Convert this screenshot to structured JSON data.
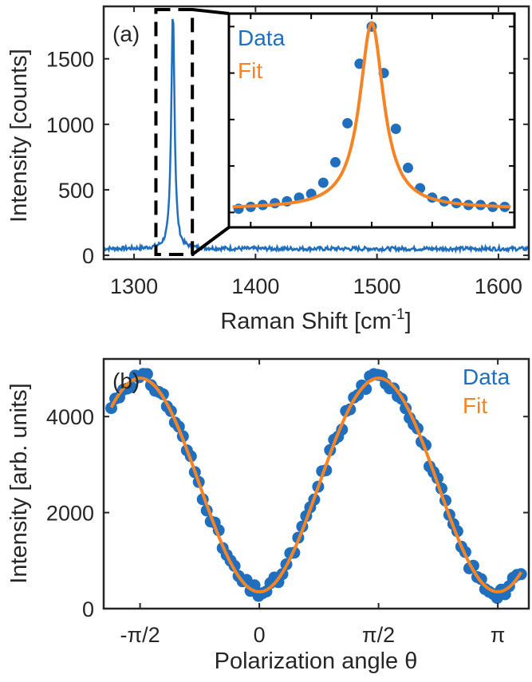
{
  "colors": {
    "data": "#1f6fbe",
    "fit": "#f58426",
    "axis": "#262626",
    "frame": "#000000"
  },
  "chart_data": [
    {
      "type": "line",
      "panel_label": "(a)",
      "xlabel": "Raman Shift [cm",
      "xlabel_sup": "-1",
      "xlabel_close": "]",
      "ylabel": "Intensity [counts]",
      "xlim": [
        1275,
        1625
      ],
      "ylim": [
        -30,
        1900
      ],
      "xticks": [
        1300,
        1400,
        1500,
        1600
      ],
      "yticks": [
        0,
        500,
        1000,
        1500
      ],
      "series": [
        {
          "kind": "raman-spectrum",
          "baseline": 50,
          "noise": 15,
          "peak_center": 1332,
          "peak_height": 1830,
          "peak_hwhm": 1.6
        }
      ],
      "zoom_box_x": [
        1318,
        1348
      ],
      "inset": {
        "series": [
          {
            "name": "Data",
            "kind": "points"
          },
          {
            "name": "Fit",
            "kind": "line"
          }
        ],
        "x": [
          -11.0,
          -10.0,
          -9.0,
          -8.0,
          -7.0,
          -6.0,
          -5.0,
          -4.0,
          -3.0,
          -2.0,
          -1.0,
          0.0,
          1.0,
          2.0,
          3.0,
          4.0,
          5.0,
          6.0,
          7.0,
          8.0,
          9.0,
          10.0,
          11.0
        ],
        "data_values": [
          0.02,
          0.03,
          0.04,
          0.05,
          0.06,
          0.08,
          0.1,
          0.16,
          0.27,
          0.48,
          0.8,
          1.0,
          0.75,
          0.45,
          0.24,
          0.13,
          0.08,
          0.06,
          0.05,
          0.04,
          0.04,
          0.03,
          0.03
        ],
        "fit_center": 0,
        "fit_hwhm": 1.2,
        "fit_height": 1.0,
        "fit_offset": 0.02
      }
    },
    {
      "type": "scatter",
      "panel_label": "(b)",
      "xlabel": "Polarization angle θ",
      "ylabel": "Intensity [arb. units]",
      "xlim": [
        -2.05,
        3.55
      ],
      "ylim": [
        0,
        5200
      ],
      "xticks": [
        -1.5708,
        0,
        1.5708,
        3.1416
      ],
      "xtick_labels": [
        "-π/2",
        "0",
        "π/2",
        "π"
      ],
      "yticks": [
        0,
        2000,
        4000
      ],
      "series": [
        {
          "name": "Data",
          "kind": "points",
          "step": 0.0524
        },
        {
          "name": "Fit",
          "kind": "line"
        }
      ],
      "model": {
        "offset": 350,
        "amplitude": 4450,
        "period": 3.1416,
        "phase_peak": -1.5708
      },
      "x_range": [
        -1.95,
        3.45
      ]
    }
  ]
}
